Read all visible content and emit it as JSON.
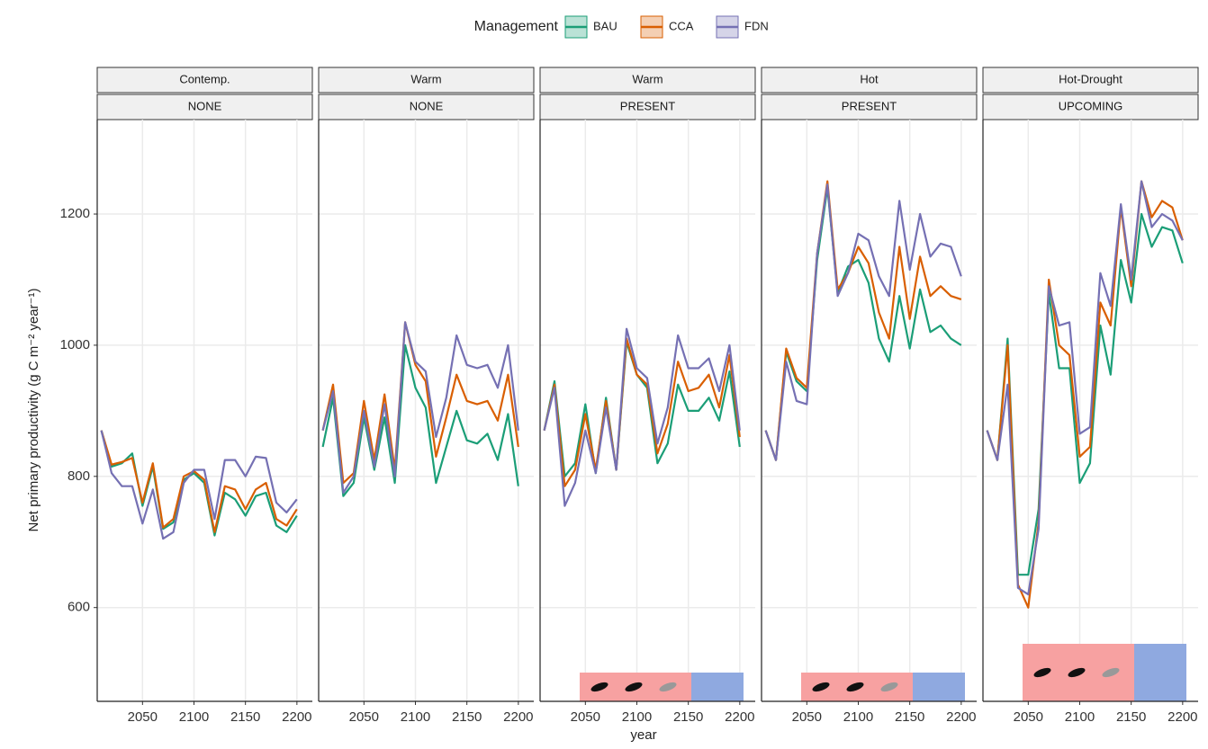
{
  "figure": {
    "legend_title": "Management",
    "xlabel": "year",
    "ylabel": "Net primary productivity (g C m⁻² year⁻¹)"
  },
  "chart_data": [
    {
      "type": "line",
      "strips": [
        "Contemp.",
        "NONE"
      ],
      "x": [
        2010,
        2020,
        2030,
        2040,
        2050,
        2060,
        2070,
        2080,
        2090,
        2100,
        2110,
        2120,
        2130,
        2140,
        2150,
        2160,
        2170,
        2180,
        2190,
        2200
      ],
      "xlim": [
        2006,
        2215
      ],
      "xticks": [
        2050,
        2100,
        2150,
        2200
      ],
      "ylim": [
        457,
        1344
      ],
      "yticks": [
        600,
        800,
        1000,
        1200
      ],
      "grid": true,
      "series": [
        {
          "name": "BAU",
          "color": "#1b9e77",
          "values": [
            870,
            815,
            820,
            835,
            755,
            815,
            720,
            730,
            795,
            805,
            790,
            710,
            775,
            765,
            740,
            770,
            775,
            725,
            715,
            740
          ]
        },
        {
          "name": "CCA",
          "color": "#d95f02",
          "values": [
            870,
            818,
            822,
            828,
            760,
            820,
            722,
            735,
            800,
            808,
            795,
            715,
            785,
            780,
            750,
            780,
            790,
            735,
            725,
            750
          ]
        },
        {
          "name": "FDN",
          "color": "#7570b3",
          "values": [
            870,
            805,
            785,
            785,
            728,
            780,
            705,
            715,
            790,
            810,
            810,
            735,
            825,
            825,
            800,
            830,
            828,
            760,
            745,
            765
          ]
        }
      ]
    },
    {
      "type": "line",
      "strips": [
        "Warm",
        "NONE"
      ],
      "x": [
        2010,
        2020,
        2030,
        2040,
        2050,
        2060,
        2070,
        2080,
        2090,
        2100,
        2110,
        2120,
        2130,
        2140,
        2150,
        2160,
        2170,
        2180,
        2190,
        2200
      ],
      "xlim": [
        2006,
        2215
      ],
      "xticks": [
        2050,
        2100,
        2150,
        2200
      ],
      "ylim": [
        457,
        1344
      ],
      "yticks": [
        600,
        800,
        1000,
        1200
      ],
      "grid": true,
      "series": [
        {
          "name": "BAU",
          "color": "#1b9e77",
          "values": [
            845,
            920,
            770,
            790,
            890,
            810,
            890,
            790,
            1000,
            935,
            905,
            790,
            845,
            900,
            855,
            850,
            865,
            825,
            895,
            785
          ]
        },
        {
          "name": "CCA",
          "color": "#d95f02",
          "values": [
            870,
            940,
            790,
            805,
            915,
            825,
            925,
            810,
            1035,
            970,
            945,
            830,
            890,
            955,
            915,
            910,
            915,
            885,
            955,
            845
          ]
        },
        {
          "name": "FDN",
          "color": "#7570b3",
          "values": [
            870,
            930,
            775,
            800,
            900,
            815,
            910,
            800,
            1035,
            975,
            960,
            860,
            920,
            1015,
            970,
            965,
            970,
            935,
            1000,
            870
          ]
        }
      ]
    },
    {
      "type": "line",
      "strips": [
        "Warm",
        "PRESENT"
      ],
      "x": [
        2010,
        2020,
        2030,
        2040,
        2050,
        2060,
        2070,
        2080,
        2090,
        2100,
        2110,
        2120,
        2130,
        2140,
        2150,
        2160,
        2170,
        2180,
        2190,
        2200
      ],
      "xlim": [
        2006,
        2215
      ],
      "xticks": [
        2050,
        2100,
        2150,
        2200
      ],
      "ylim": [
        457,
        1344
      ],
      "yticks": [
        600,
        800,
        1000,
        1200
      ],
      "grid": true,
      "series": [
        {
          "name": "BAU",
          "color": "#1b9e77",
          "values": [
            870,
            945,
            800,
            820,
            910,
            805,
            920,
            810,
            1005,
            955,
            935,
            820,
            850,
            940,
            900,
            900,
            920,
            885,
            960,
            845
          ]
        },
        {
          "name": "CCA",
          "color": "#d95f02",
          "values": [
            870,
            940,
            785,
            810,
            895,
            810,
            915,
            810,
            1010,
            955,
            940,
            835,
            880,
            975,
            930,
            935,
            955,
            905,
            985,
            860
          ]
        },
        {
          "name": "FDN",
          "color": "#7570b3",
          "values": [
            870,
            935,
            755,
            790,
            870,
            805,
            905,
            810,
            1025,
            965,
            950,
            850,
            905,
            1015,
            965,
            965,
            980,
            930,
            1000,
            870
          ]
        }
      ]
    },
    {
      "type": "line",
      "strips": [
        "Hot",
        "PRESENT"
      ],
      "x": [
        2010,
        2020,
        2030,
        2040,
        2050,
        2060,
        2070,
        2080,
        2090,
        2100,
        2110,
        2120,
        2130,
        2140,
        2150,
        2160,
        2170,
        2180,
        2190,
        2200
      ],
      "xlim": [
        2006,
        2215
      ],
      "xticks": [
        2050,
        2100,
        2150,
        2200
      ],
      "ylim": [
        457,
        1344
      ],
      "yticks": [
        600,
        800,
        1000,
        1200
      ],
      "grid": true,
      "series": [
        {
          "name": "BAU",
          "color": "#1b9e77",
          "values": [
            870,
            825,
            990,
            945,
            930,
            1130,
            1240,
            1080,
            1120,
            1130,
            1095,
            1010,
            975,
            1075,
            995,
            1085,
            1020,
            1030,
            1010,
            1000
          ]
        },
        {
          "name": "CCA",
          "color": "#d95f02",
          "values": [
            870,
            825,
            995,
            950,
            935,
            1140,
            1250,
            1085,
            1110,
            1150,
            1125,
            1050,
            1010,
            1150,
            1040,
            1135,
            1075,
            1090,
            1075,
            1070
          ]
        },
        {
          "name": "FDN",
          "color": "#7570b3",
          "values": [
            870,
            825,
            975,
            915,
            910,
            1140,
            1245,
            1075,
            1110,
            1170,
            1160,
            1105,
            1075,
            1220,
            1115,
            1200,
            1135,
            1155,
            1150,
            1105
          ]
        }
      ]
    },
    {
      "type": "line",
      "strips": [
        "Hot-Drought",
        "UPCOMING"
      ],
      "x": [
        2010,
        2020,
        2030,
        2040,
        2050,
        2060,
        2070,
        2080,
        2090,
        2100,
        2110,
        2120,
        2130,
        2140,
        2150,
        2160,
        2170,
        2180,
        2190,
        2200
      ],
      "xlim": [
        2006,
        2215
      ],
      "xticks": [
        2050,
        2100,
        2150,
        2200
      ],
      "ylim": [
        457,
        1344
      ],
      "yticks": [
        600,
        800,
        1000,
        1200
      ],
      "grid": true,
      "series": [
        {
          "name": "BAU",
          "color": "#1b9e77",
          "values": [
            870,
            825,
            1010,
            650,
            650,
            750,
            1080,
            965,
            965,
            790,
            820,
            1030,
            955,
            1130,
            1065,
            1200,
            1150,
            1180,
            1175,
            1125
          ]
        },
        {
          "name": "CCA",
          "color": "#d95f02",
          "values": [
            870,
            825,
            1000,
            635,
            600,
            730,
            1100,
            1000,
            985,
            830,
            845,
            1065,
            1030,
            1210,
            1090,
            1250,
            1195,
            1220,
            1210,
            1160
          ]
        },
        {
          "name": "FDN",
          "color": "#7570b3",
          "values": [
            870,
            825,
            940,
            630,
            620,
            720,
            1090,
            1030,
            1035,
            865,
            875,
            1110,
            1060,
            1215,
            1100,
            1250,
            1180,
            1200,
            1190,
            1160
          ]
        }
      ]
    }
  ]
}
